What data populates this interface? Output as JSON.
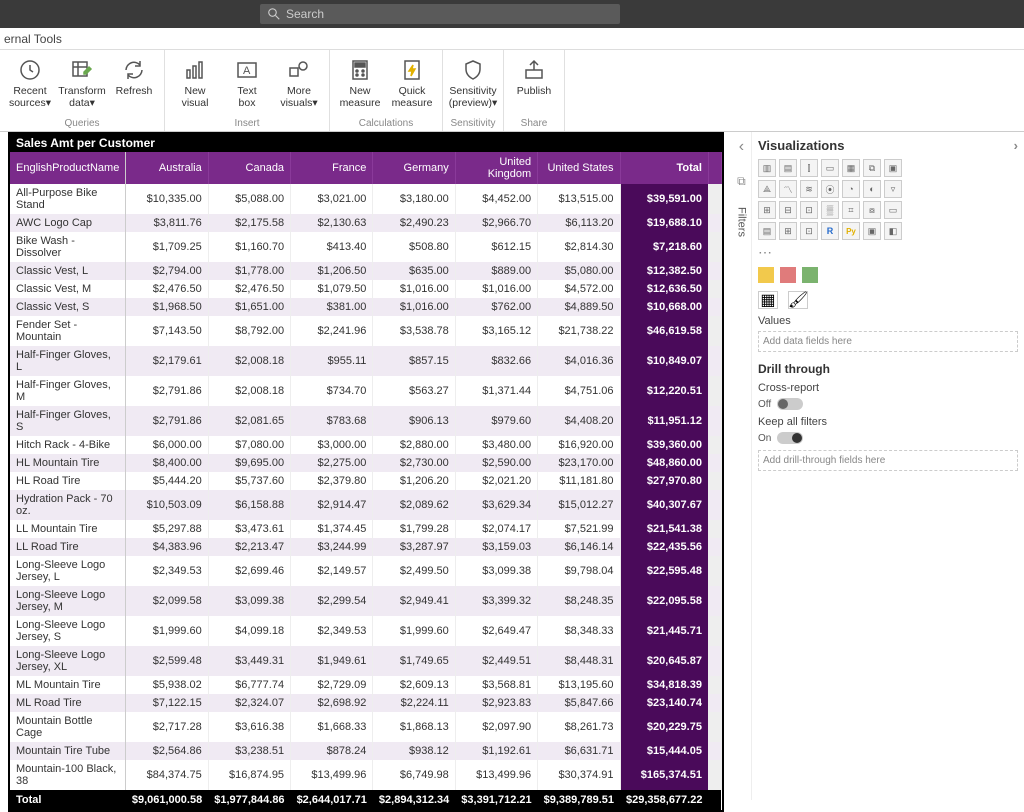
{
  "search": {
    "placeholder": "Search"
  },
  "ribbon": {
    "tab": "ernal Tools",
    "groups": [
      {
        "label": "Queries",
        "buttons": [
          {
            "name": "recent-sources",
            "label": "Recent sources⌄",
            "icon": "clock"
          },
          {
            "name": "transform-data",
            "label": "Transform data⌄",
            "icon": "table-edit"
          },
          {
            "name": "refresh",
            "label": "Refresh",
            "icon": "refresh"
          }
        ]
      },
      {
        "label": "Insert",
        "buttons": [
          {
            "name": "new-visual",
            "label": "New visual",
            "icon": "chart"
          },
          {
            "name": "text-box",
            "label": "Text box",
            "icon": "textbox"
          },
          {
            "name": "more-visuals",
            "label": "More visuals⌄",
            "icon": "shapes"
          }
        ]
      },
      {
        "label": "Calculations",
        "buttons": [
          {
            "name": "new-measure",
            "label": "New measure",
            "icon": "calc"
          },
          {
            "name": "quick-measure",
            "label": "Quick measure",
            "icon": "quick"
          }
        ]
      },
      {
        "label": "Sensitivity",
        "buttons": [
          {
            "name": "sensitivity",
            "label": "Sensitivity (preview)⌄",
            "icon": "shield"
          }
        ]
      },
      {
        "label": "Share",
        "buttons": [
          {
            "name": "publish",
            "label": "Publish",
            "icon": "publish"
          }
        ]
      }
    ]
  },
  "collapse": {
    "filters": "Filters"
  },
  "viz": {
    "header": "Visualizations",
    "values_label": "Values",
    "values_placeholder": "Add data fields here",
    "drill_header": "Drill through",
    "cross_report": "Cross-report",
    "cross_report_state": "Off",
    "keep_filters": "Keep all filters",
    "keep_filters_state": "On",
    "drill_placeholder": "Add drill-through fields here"
  },
  "matrix": {
    "title": "Sales Amt per Customer",
    "row_header": "EnglishProductName",
    "columns": [
      "Australia",
      "Canada",
      "France",
      "Germany",
      "United Kingdom",
      "United States"
    ],
    "total_label": "Total",
    "footer_label": "Total",
    "colors": {
      "header_bg": "#7a2a8a",
      "total_col_bg": "#4a0a5a",
      "row_alt_bg": "#f0eaf3",
      "footer_bg": "#000000",
      "border": "#000000"
    },
    "rows": [
      {
        "name": "All-Purpose Bike Stand",
        "v": [
          "$10,335.00",
          "$5,088.00",
          "$3,021.00",
          "$3,180.00",
          "$4,452.00",
          "$13,515.00"
        ],
        "t": "$39,591.00"
      },
      {
        "name": "AWC Logo Cap",
        "v": [
          "$3,811.76",
          "$2,175.58",
          "$2,130.63",
          "$2,490.23",
          "$2,966.70",
          "$6,113.20"
        ],
        "t": "$19,688.10"
      },
      {
        "name": "Bike Wash - Dissolver",
        "v": [
          "$1,709.25",
          "$1,160.70",
          "$413.40",
          "$508.80",
          "$612.15",
          "$2,814.30"
        ],
        "t": "$7,218.60"
      },
      {
        "name": "Classic Vest, L",
        "v": [
          "$2,794.00",
          "$1,778.00",
          "$1,206.50",
          "$635.00",
          "$889.00",
          "$5,080.00"
        ],
        "t": "$12,382.50"
      },
      {
        "name": "Classic Vest, M",
        "v": [
          "$2,476.50",
          "$2,476.50",
          "$1,079.50",
          "$1,016.00",
          "$1,016.00",
          "$4,572.00"
        ],
        "t": "$12,636.50"
      },
      {
        "name": "Classic Vest, S",
        "v": [
          "$1,968.50",
          "$1,651.00",
          "$381.00",
          "$1,016.00",
          "$762.00",
          "$4,889.50"
        ],
        "t": "$10,668.00"
      },
      {
        "name": "Fender Set - Mountain",
        "v": [
          "$7,143.50",
          "$8,792.00",
          "$2,241.96",
          "$3,538.78",
          "$3,165.12",
          "$21,738.22"
        ],
        "t": "$46,619.58"
      },
      {
        "name": "Half-Finger Gloves, L",
        "v": [
          "$2,179.61",
          "$2,008.18",
          "$955.11",
          "$857.15",
          "$832.66",
          "$4,016.36"
        ],
        "t": "$10,849.07"
      },
      {
        "name": "Half-Finger Gloves, M",
        "v": [
          "$2,791.86",
          "$2,008.18",
          "$734.70",
          "$563.27",
          "$1,371.44",
          "$4,751.06"
        ],
        "t": "$12,220.51"
      },
      {
        "name": "Half-Finger Gloves, S",
        "v": [
          "$2,791.86",
          "$2,081.65",
          "$783.68",
          "$906.13",
          "$979.60",
          "$4,408.20"
        ],
        "t": "$11,951.12"
      },
      {
        "name": "Hitch Rack - 4-Bike",
        "v": [
          "$6,000.00",
          "$7,080.00",
          "$3,000.00",
          "$2,880.00",
          "$3,480.00",
          "$16,920.00"
        ],
        "t": "$39,360.00"
      },
      {
        "name": "HL Mountain Tire",
        "v": [
          "$8,400.00",
          "$9,695.00",
          "$2,275.00",
          "$2,730.00",
          "$2,590.00",
          "$23,170.00"
        ],
        "t": "$48,860.00"
      },
      {
        "name": "HL Road Tire",
        "v": [
          "$5,444.20",
          "$5,737.60",
          "$2,379.80",
          "$1,206.20",
          "$2,021.20",
          "$11,181.80"
        ],
        "t": "$27,970.80"
      },
      {
        "name": "Hydration Pack - 70 oz.",
        "v": [
          "$10,503.09",
          "$6,158.88",
          "$2,914.47",
          "$2,089.62",
          "$3,629.34",
          "$15,012.27"
        ],
        "t": "$40,307.67"
      },
      {
        "name": "LL Mountain Tire",
        "v": [
          "$5,297.88",
          "$3,473.61",
          "$1,374.45",
          "$1,799.28",
          "$2,074.17",
          "$7,521.99"
        ],
        "t": "$21,541.38"
      },
      {
        "name": "LL Road Tire",
        "v": [
          "$4,383.96",
          "$2,213.47",
          "$3,244.99",
          "$3,287.97",
          "$3,159.03",
          "$6,146.14"
        ],
        "t": "$22,435.56"
      },
      {
        "name": "Long-Sleeve Logo Jersey, L",
        "v": [
          "$2,349.53",
          "$2,699.46",
          "$2,149.57",
          "$2,499.50",
          "$3,099.38",
          "$9,798.04"
        ],
        "t": "$22,595.48"
      },
      {
        "name": "Long-Sleeve Logo Jersey, M",
        "v": [
          "$2,099.58",
          "$3,099.38",
          "$2,299.54",
          "$2,949.41",
          "$3,399.32",
          "$8,248.35"
        ],
        "t": "$22,095.58"
      },
      {
        "name": "Long-Sleeve Logo Jersey, S",
        "v": [
          "$1,999.60",
          "$4,099.18",
          "$2,349.53",
          "$1,999.60",
          "$2,649.47",
          "$8,348.33"
        ],
        "t": "$21,445.71"
      },
      {
        "name": "Long-Sleeve Logo Jersey, XL",
        "v": [
          "$2,599.48",
          "$3,449.31",
          "$1,949.61",
          "$1,749.65",
          "$2,449.51",
          "$8,448.31"
        ],
        "t": "$20,645.87"
      },
      {
        "name": "ML Mountain Tire",
        "v": [
          "$5,938.02",
          "$6,777.74",
          "$2,729.09",
          "$2,609.13",
          "$3,568.81",
          "$13,195.60"
        ],
        "t": "$34,818.39"
      },
      {
        "name": "ML Road Tire",
        "v": [
          "$7,122.15",
          "$2,324.07",
          "$2,698.92",
          "$2,224.11",
          "$2,923.83",
          "$5,847.66"
        ],
        "t": "$23,140.74"
      },
      {
        "name": "Mountain Bottle Cage",
        "v": [
          "$2,717.28",
          "$3,616.38",
          "$1,668.33",
          "$1,868.13",
          "$2,097.90",
          "$8,261.73"
        ],
        "t": "$20,229.75"
      },
      {
        "name": "Mountain Tire Tube",
        "v": [
          "$2,564.86",
          "$3,238.51",
          "$878.24",
          "$938.12",
          "$1,192.61",
          "$6,631.71"
        ],
        "t": "$15,444.05"
      },
      {
        "name": "Mountain-100 Black, 38",
        "v": [
          "$84,374.75",
          "$16,874.95",
          "$13,499.96",
          "$6,749.98",
          "$13,499.96",
          "$30,374.91"
        ],
        "t": "$165,374.51"
      }
    ],
    "footer": [
      "$9,061,000.58",
      "$1,977,844.86",
      "$2,644,017.71",
      "$2,894,312.34",
      "$3,391,712.21",
      "$9,389,789.51",
      "$29,358,677.22"
    ]
  }
}
